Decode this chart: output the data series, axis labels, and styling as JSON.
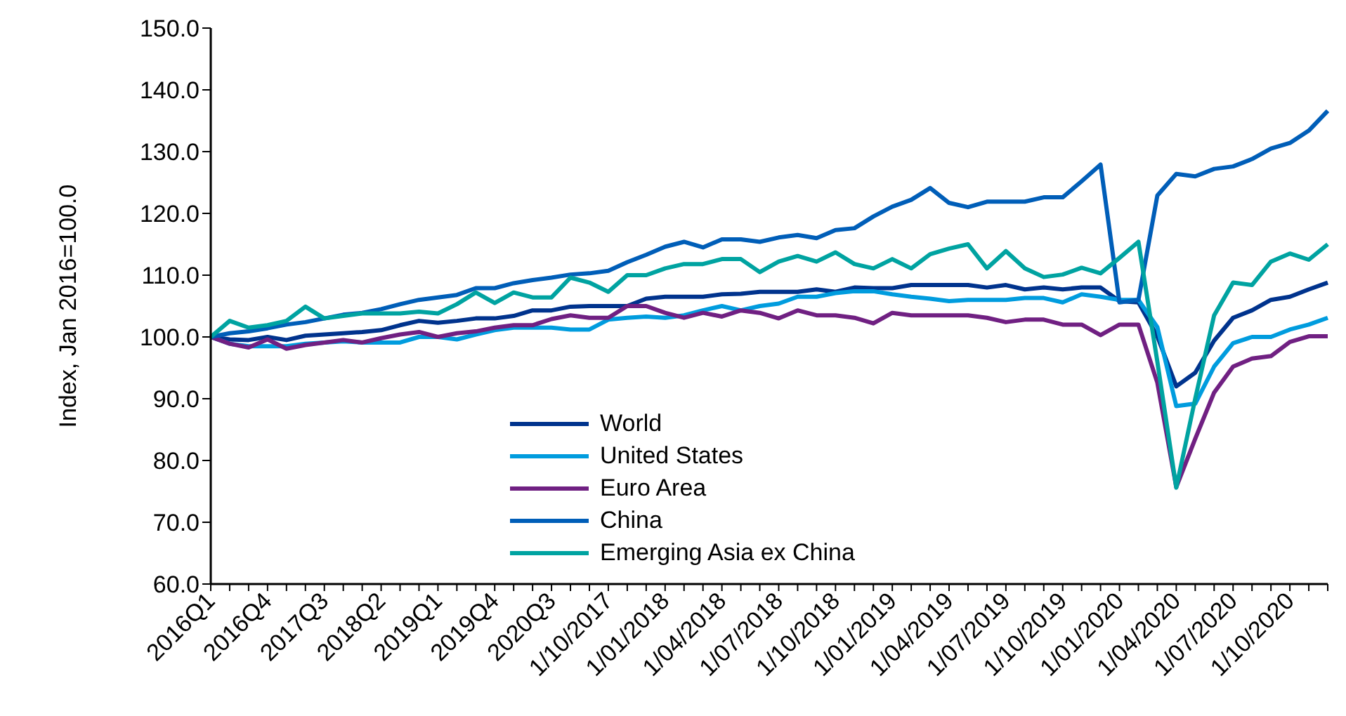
{
  "chart_data": {
    "type": "line",
    "ylabel": "Index, Jan 2016=100.0",
    "categories": [
      "2016Q1",
      null,
      null,
      "2016Q4",
      null,
      null,
      "2017Q3",
      null,
      null,
      "2018Q2",
      null,
      null,
      "2019Q1",
      null,
      null,
      "2019Q4",
      null,
      null,
      "2020Q3",
      null,
      null,
      "1/10/2017",
      null,
      null,
      "1/01/2018",
      null,
      null,
      "1/04/2018",
      null,
      null,
      "1/07/2018",
      null,
      null,
      "1/10/2018",
      null,
      null,
      "1/01/2019",
      null,
      null,
      "1/04/2019",
      null,
      null,
      "1/07/2019",
      null,
      null,
      "1/10/2019",
      null,
      null,
      "1/01/2020",
      null,
      null,
      "1/04/2020",
      null,
      null,
      "1/07/2020",
      null,
      null,
      "1/10/2020",
      null,
      null
    ],
    "series": [
      {
        "name": "World",
        "color": "#00338d",
        "values": [
          100,
          99.6,
          99.5,
          100,
          99.5,
          100.2,
          100.4,
          100.6,
          100.8,
          101.1,
          101.9,
          102.6,
          102.3,
          102.6,
          103,
          103,
          103.4,
          104.3,
          104.3,
          104.9,
          105,
          105,
          105,
          106.2,
          106.5,
          106.5,
          106.5,
          106.9,
          107,
          107.3,
          107.3,
          107.3,
          107.7,
          107.3,
          108,
          107.9,
          107.9,
          108.4,
          108.4,
          108.4,
          108.4,
          108,
          108.4,
          107.7,
          108,
          107.7,
          108,
          108,
          105.8,
          105.6,
          100.1,
          92,
          94.2,
          99.4,
          103.1,
          104.3,
          106,
          106.5,
          107.7,
          108.8
        ]
      },
      {
        "name": "United States",
        "color": "#009cde",
        "values": [
          100,
          98.9,
          98.5,
          98.5,
          98.5,
          98.9,
          99.1,
          99.3,
          99.1,
          99.1,
          99.1,
          100,
          100,
          99.6,
          100.4,
          101.1,
          101.5,
          101.5,
          101.5,
          101.2,
          101.2,
          102.8,
          103.1,
          103.3,
          103.1,
          103.5,
          104.3,
          105,
          104.3,
          105,
          105.4,
          106.5,
          106.5,
          107.1,
          107.4,
          107.4,
          106.9,
          106.5,
          106.2,
          105.8,
          106,
          106,
          106,
          106.3,
          106.3,
          105.6,
          106.9,
          106.5,
          106,
          106,
          101.6,
          88.8,
          89.2,
          95.2,
          99,
          100,
          100,
          101.2,
          102,
          103.1
        ]
      },
      {
        "name": "Euro Area",
        "color": "#702082",
        "values": [
          100,
          98.9,
          98.3,
          99.6,
          98.1,
          98.7,
          99.1,
          99.5,
          99.1,
          99.8,
          100.4,
          100.8,
          100,
          100.6,
          100.9,
          101.5,
          101.9,
          101.9,
          102.9,
          103.5,
          103.1,
          103.1,
          105,
          105,
          103.9,
          103.1,
          103.9,
          103.3,
          104.3,
          103.9,
          103,
          104.3,
          103.5,
          103.5,
          103.1,
          102.2,
          103.9,
          103.5,
          103.5,
          103.5,
          103.5,
          103.1,
          102.4,
          102.8,
          102.8,
          102,
          102,
          100.3,
          102,
          102,
          92.6,
          75.7,
          83.5,
          91,
          95.2,
          96.5,
          96.9,
          99.2,
          100.1,
          100.1
        ]
      },
      {
        "name": "China",
        "color": "#005eb8",
        "values": [
          100,
          100.6,
          100.9,
          101.4,
          102,
          102.4,
          103,
          103.6,
          103.9,
          104.5,
          105.3,
          106,
          106.4,
          106.8,
          107.9,
          107.9,
          108.7,
          109.2,
          109.6,
          110.1,
          110.3,
          110.7,
          112.1,
          113.3,
          114.6,
          115.4,
          114.5,
          115.8,
          115.8,
          115.4,
          116.1,
          116.5,
          116,
          117.3,
          117.6,
          119.5,
          121.1,
          122.2,
          124.1,
          121.7,
          121,
          121.9,
          121.9,
          121.9,
          122.6,
          122.6,
          125.2,
          127.9,
          105.6,
          106,
          122.9,
          126.4,
          126,
          127.2,
          127.6,
          128.8,
          130.5,
          131.4,
          133.4,
          136.6
        ]
      },
      {
        "name": "Emerging Asia ex China",
        "color": "#00a3a1",
        "values": [
          100,
          102.6,
          101.5,
          101.9,
          102.6,
          104.9,
          103,
          103.4,
          103.8,
          103.8,
          103.8,
          104.1,
          103.8,
          105.3,
          107.2,
          105.5,
          107.2,
          106.4,
          106.4,
          109.6,
          108.8,
          107.3,
          110,
          110,
          111.1,
          111.8,
          111.8,
          112.6,
          112.6,
          110.5,
          112.2,
          113.1,
          112.2,
          113.7,
          111.8,
          111.1,
          112.6,
          111.1,
          113.4,
          114.3,
          115,
          111.1,
          113.9,
          111.1,
          109.7,
          110.1,
          111.2,
          110.3,
          112.8,
          115.4,
          96,
          75.6,
          90,
          103.5,
          108.8,
          108.4,
          112.2,
          113.5,
          112.5,
          115
        ]
      }
    ],
    "ylim": [
      60,
      150
    ],
    "yticks": [
      {
        "value": 60,
        "label": "60.0"
      },
      {
        "value": 70,
        "label": "70.0"
      },
      {
        "value": 80,
        "label": "80.0"
      },
      {
        "value": 90,
        "label": "90.0"
      },
      {
        "value": 100,
        "label": "100.0"
      },
      {
        "value": 110,
        "label": "110.0"
      },
      {
        "value": 120,
        "label": "120.0"
      },
      {
        "value": 130,
        "label": "130.0"
      },
      {
        "value": 140,
        "label": "140.0"
      },
      {
        "value": 150,
        "label": "150.0"
      }
    ],
    "legend": "bottom",
    "marker": "none",
    "line_style": "solid"
  }
}
